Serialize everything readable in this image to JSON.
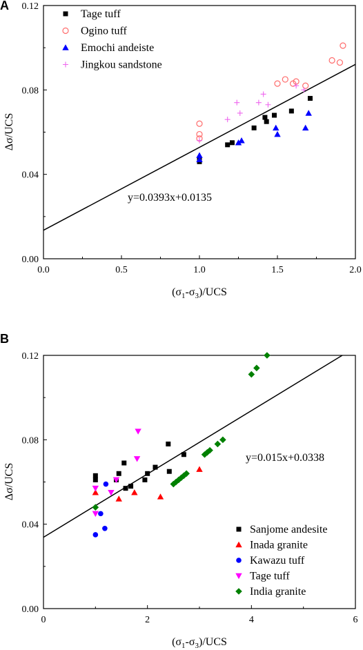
{
  "chart_data": [
    {
      "panel": "A",
      "type": "scatter",
      "xlabel": "(σ1-σ3)/UCS",
      "xlabel_parts": {
        "open": "(σ",
        "sub1": "1",
        "mid": "-σ",
        "sub3": "3",
        "close": ")/UCS"
      },
      "ylabel": "Δσ/UCS",
      "xlim": [
        0.0,
        2.0
      ],
      "ylim": [
        0.0,
        0.12
      ],
      "xticks": [
        0.0,
        0.5,
        1.0,
        1.5,
        2.0
      ],
      "xticklabels": [
        "0.0",
        "0.5",
        "1.0",
        "1.5",
        "2.0"
      ],
      "yticks": [
        0.0,
        0.04,
        0.08,
        0.12
      ],
      "yticklabels": [
        "0.00",
        "0.04",
        "0.08",
        "0.12"
      ],
      "legend_position": "top-left",
      "equation": "y=0.0393x+0.0135",
      "fit": {
        "slope": 0.0393,
        "intercept": 0.0135
      },
      "series": [
        {
          "name": "Tage tuff",
          "marker": "square",
          "color": "#000000",
          "x": [
            1.0,
            1.0,
            1.18,
            1.21,
            1.35,
            1.42,
            1.43,
            1.48,
            1.59,
            1.71
          ],
          "y": [
            0.046,
            0.047,
            0.054,
            0.055,
            0.062,
            0.067,
            0.065,
            0.068,
            0.07,
            0.076
          ]
        },
        {
          "name": "Ogino tuff",
          "marker": "circle-open",
          "color": "#ff6b6b",
          "x": [
            1.0,
            1.0,
            1.0,
            1.5,
            1.55,
            1.6,
            1.62,
            1.68,
            1.85,
            1.9,
            1.92
          ],
          "y": [
            0.064,
            0.059,
            0.057,
            0.083,
            0.085,
            0.083,
            0.084,
            0.082,
            0.094,
            0.093,
            0.101
          ]
        },
        {
          "name": "Emochi andeiste",
          "marker": "triangle",
          "color": "#0000ff",
          "x": [
            1.0,
            1.0,
            1.25,
            1.27,
            1.49,
            1.5,
            1.68,
            1.7
          ],
          "y": [
            0.049,
            0.047,
            0.055,
            0.056,
            0.062,
            0.059,
            0.062,
            0.069
          ]
        },
        {
          "name": "Jingkou sandstone",
          "marker": "plus",
          "color": "#ee66ee",
          "x": [
            1.0,
            1.18,
            1.24,
            1.26,
            1.38,
            1.41,
            1.44,
            1.62,
            1.67
          ],
          "y": [
            0.056,
            0.066,
            0.074,
            0.069,
            0.074,
            0.078,
            0.073,
            0.082,
            0.08
          ]
        }
      ]
    },
    {
      "panel": "B",
      "type": "scatter",
      "xlabel": "(σ1-σ3)/UCS",
      "xlabel_parts": {
        "open": "(σ",
        "sub1": "1",
        "mid": "-σ",
        "sub3": "3",
        "close": ")/UCS"
      },
      "ylabel": "Δσ/UCS",
      "xlim": [
        0,
        6
      ],
      "ylim": [
        0.0,
        0.12
      ],
      "xticks": [
        0,
        2,
        4,
        6
      ],
      "xticklabels": [
        "0",
        "2",
        "4",
        "6"
      ],
      "yticks": [
        0.0,
        0.04,
        0.08,
        0.12
      ],
      "yticklabels": [
        "0.00",
        "0.04",
        "0.08",
        "0.12"
      ],
      "legend_position": "bottom-right",
      "equation": "y=0.015x+0.0338",
      "fit": {
        "slope": 0.015,
        "intercept": 0.0338
      },
      "series": [
        {
          "name": "Sanjome andesite",
          "marker": "square",
          "color": "#000000",
          "x": [
            1.0,
            1.0,
            1.4,
            1.45,
            1.55,
            1.58,
            1.68,
            1.95,
            2.0,
            2.15,
            2.4,
            2.42,
            2.7
          ],
          "y": [
            0.063,
            0.061,
            0.061,
            0.064,
            0.069,
            0.057,
            0.058,
            0.061,
            0.064,
            0.067,
            0.078,
            0.065,
            0.073
          ]
        },
        {
          "name": "Inada granite",
          "marker": "triangle",
          "color": "#ff0000",
          "x": [
            1.0,
            1.45,
            1.75,
            2.25,
            3.0
          ],
          "y": [
            0.055,
            0.052,
            0.055,
            0.053,
            0.066
          ]
        },
        {
          "name": "Kawazu tuff",
          "marker": "circle",
          "color": "#0000ff",
          "x": [
            1.0,
            1.1,
            1.18,
            1.2
          ],
          "y": [
            0.035,
            0.045,
            0.038,
            0.059
          ]
        },
        {
          "name": "Tage tuff",
          "marker": "triangle-down",
          "color": "#ff00ff",
          "x": [
            1.0,
            1.0,
            1.3,
            1.4,
            1.8,
            1.82
          ],
          "y": [
            0.057,
            0.045,
            0.055,
            0.061,
            0.071,
            0.084
          ]
        },
        {
          "name": "India granite",
          "marker": "diamond",
          "color": "#008000",
          "x": [
            1.0,
            2.5,
            2.55,
            2.6,
            2.65,
            2.7,
            2.75,
            3.1,
            3.15,
            3.2,
            3.35,
            3.45,
            4.0,
            4.1,
            4.3
          ],
          "y": [
            0.048,
            0.059,
            0.06,
            0.061,
            0.062,
            0.063,
            0.064,
            0.073,
            0.074,
            0.075,
            0.078,
            0.08,
            0.111,
            0.114,
            0.12
          ]
        }
      ]
    }
  ]
}
